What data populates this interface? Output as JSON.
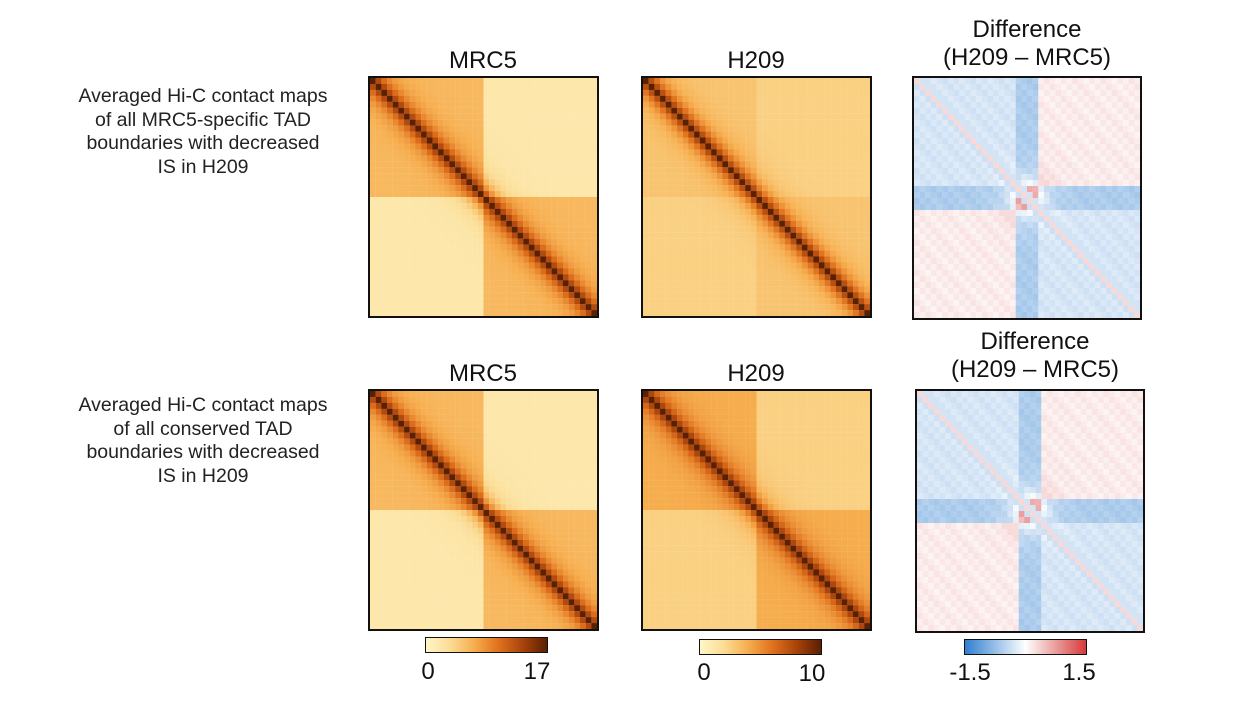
{
  "rows": [
    {
      "label_lines": [
        "Averaged Hi-C contact maps",
        "of all MRC5-specific TAD",
        "boundaries with decreased",
        "IS in H209"
      ]
    },
    {
      "label_lines": [
        "Averaged Hi-C contact maps",
        "of all conserved TAD",
        "boundaries with decreased",
        "IS in H209"
      ]
    }
  ],
  "columns": [
    {
      "title_lines": [
        "MRC5"
      ]
    },
    {
      "title_lines": [
        "H209"
      ]
    },
    {
      "title_lines": [
        "Difference",
        "(H209 – MRC5)"
      ]
    }
  ],
  "chart_data": [
    {
      "type": "heatmap",
      "title": "MRC5",
      "row": "Averaged Hi-C contact maps of all MRC5-specific TAD boundaries with decreased IS in H209",
      "colormap": [
        "#fff6c8",
        "#fbdc95",
        "#f6ad4e",
        "#e0711c",
        "#a8430a",
        "#5a2002"
      ],
      "vmin": 0,
      "vmax": 17,
      "description_values": {
        "diagonal": 17,
        "within_tad": 6,
        "across_boundary": 2
      }
    },
    {
      "type": "heatmap",
      "title": "H209",
      "row": "Averaged Hi-C contact maps of all MRC5-specific TAD boundaries with decreased IS in H209",
      "colormap": [
        "#fff6c8",
        "#fbdc95",
        "#f6ad4e",
        "#e0711c",
        "#a8430a",
        "#5a2002"
      ],
      "vmin": 0,
      "vmax": 10,
      "description_values": {
        "diagonal": 10,
        "within_tad": 3,
        "across_boundary": 2.5
      }
    },
    {
      "type": "heatmap",
      "title": "Difference (H209 – MRC5)",
      "row": "Averaged Hi-C contact maps of all MRC5-specific TAD boundaries with decreased IS in H209",
      "colormap": [
        "#2f7fd0",
        "#ffffff",
        "#d63a3a"
      ],
      "vmin": -1.5,
      "vmax": 1.5,
      "description_values": {
        "within_tad": -0.3,
        "across_boundary": 0.15,
        "boundary_stripes": -0.6,
        "boundary_center": 1.4
      }
    },
    {
      "type": "heatmap",
      "title": "MRC5",
      "row": "Averaged Hi-C contact maps of all conserved TAD boundaries with decreased IS in H209",
      "colormap": [
        "#fff6c8",
        "#fbdc95",
        "#f6ad4e",
        "#e0711c",
        "#a8430a",
        "#5a2002"
      ],
      "vmin": 0,
      "vmax": 17,
      "description_values": {
        "diagonal": 17,
        "within_tad": 6,
        "across_boundary": 2
      }
    },
    {
      "type": "heatmap",
      "title": "H209",
      "row": "Averaged Hi-C contact maps of all conserved TAD boundaries with decreased IS in H209",
      "colormap": [
        "#fff6c8",
        "#fbdc95",
        "#f6ad4e",
        "#e0711c",
        "#a8430a",
        "#5a2002"
      ],
      "vmin": 0,
      "vmax": 10,
      "description_values": {
        "diagonal": 10,
        "within_tad": 4,
        "across_boundary": 2.5
      }
    },
    {
      "type": "heatmap",
      "title": "Difference (H209 – MRC5)",
      "row": "Averaged Hi-C contact maps of all conserved TAD boundaries with decreased IS in H209",
      "colormap": [
        "#2f7fd0",
        "#ffffff",
        "#d63a3a"
      ],
      "vmin": -1.5,
      "vmax": 1.5,
      "description_values": {
        "within_tad": -0.3,
        "across_boundary": 0.15,
        "boundary_stripes": -0.6,
        "boundary_center": 1.4
      }
    }
  ],
  "colorbars": [
    {
      "ticks": [
        "0",
        "17"
      ],
      "colors": [
        "#fff6c8",
        "#fbdc95",
        "#f6ad4e",
        "#e0711c",
        "#a8430a",
        "#5a2002"
      ]
    },
    {
      "ticks": [
        "0",
        "10"
      ],
      "colors": [
        "#fff6c8",
        "#fbdc95",
        "#f6ad4e",
        "#e0711c",
        "#a8430a",
        "#5a2002"
      ]
    },
    {
      "ticks": [
        "-1.5",
        "1.5"
      ],
      "colors": [
        "#2f7fd0",
        "#ffffff",
        "#d63a3a"
      ]
    }
  ]
}
